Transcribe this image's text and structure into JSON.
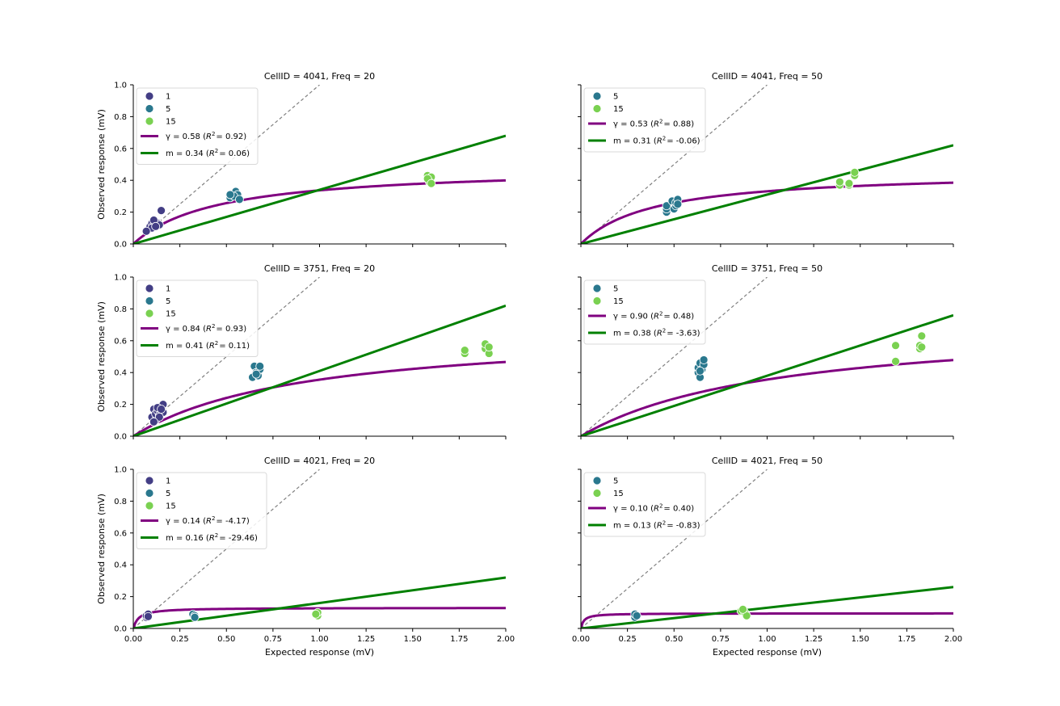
{
  "colors": {
    "group_1": "#433e85",
    "group_5": "#2a788e",
    "group_15": "#7ad151",
    "gamma_line": "#800080",
    "linear_line": "#008000",
    "identity_line": "#808080"
  },
  "chart_data": [
    {
      "type": "scatter",
      "title": "CellID = 4041, Freq = 20",
      "xlabel": "",
      "ylabel": "Observed response (mV)",
      "xlim": [
        0,
        2.0
      ],
      "ylim": [
        0,
        1.0
      ],
      "x_ticks": [
        "0.00",
        "0.25",
        "0.50",
        "0.75",
        "1.00",
        "1.25",
        "1.50",
        "1.75",
        "2.00"
      ],
      "y_ticks": [
        "0.0",
        "0.2",
        "0.4",
        "0.6",
        "0.8",
        "1.0"
      ],
      "show_x_tick_labels": false,
      "show_y_tick_labels": true,
      "legend": {
        "placement": "upper-left",
        "groups": [
          "1",
          "5",
          "15"
        ],
        "gamma_label": "γ = 0.58 (",
        "gamma_r2": "= 0.92)",
        "linear_label": "m = 0.34 (",
        "linear_r2": "= 0.06)"
      },
      "gamma": 0.58,
      "slope": 0.34,
      "ymax": 0.49,
      "series": [
        {
          "name": "1",
          "color_key": "group_1",
          "points": [
            [
              0.08,
              0.09
            ],
            [
              0.09,
              0.11
            ],
            [
              0.1,
              0.13
            ],
            [
              0.11,
              0.12
            ],
            [
              0.12,
              0.14
            ],
            [
              0.13,
              0.13
            ],
            [
              0.1,
              0.1
            ],
            [
              0.14,
              0.12
            ],
            [
              0.15,
              0.21
            ],
            [
              0.11,
              0.15
            ],
            [
              0.07,
              0.08
            ],
            [
              0.12,
              0.11
            ]
          ]
        },
        {
          "name": "5",
          "color_key": "group_5",
          "points": [
            [
              0.52,
              0.29
            ],
            [
              0.55,
              0.33
            ],
            [
              0.56,
              0.31
            ],
            [
              0.54,
              0.3
            ],
            [
              0.57,
              0.28
            ],
            [
              0.52,
              0.31
            ]
          ]
        },
        {
          "name": "15",
          "color_key": "group_15",
          "points": [
            [
              1.58,
              0.43
            ],
            [
              1.6,
              0.42
            ],
            [
              1.59,
              0.39
            ],
            [
              1.58,
              0.41
            ],
            [
              1.6,
              0.38
            ]
          ]
        }
      ]
    },
    {
      "type": "scatter",
      "title": "CellID = 4041, Freq = 50",
      "xlabel": "",
      "ylabel": "",
      "xlim": [
        0,
        2.0
      ],
      "ylim": [
        0,
        1.0
      ],
      "x_ticks": [
        "0.00",
        "0.25",
        "0.50",
        "0.75",
        "1.00",
        "1.25",
        "1.50",
        "1.75",
        "2.00"
      ],
      "y_ticks": [
        "0.0",
        "0.2",
        "0.4",
        "0.6",
        "0.8",
        "1.0"
      ],
      "show_x_tick_labels": false,
      "show_y_tick_labels": false,
      "legend": {
        "placement": "upper-left",
        "groups": [
          "5",
          "15"
        ],
        "gamma_label": "γ = 0.53 (",
        "gamma_r2": "= 0.88)",
        "linear_label": "m = 0.31 (",
        "linear_r2": "= -0.06)"
      },
      "gamma": 0.53,
      "slope": 0.31,
      "ymax": 0.46,
      "series": [
        {
          "name": "5",
          "color_key": "group_5",
          "points": [
            [
              0.46,
              0.2
            ],
            [
              0.46,
              0.22
            ],
            [
              0.46,
              0.24
            ],
            [
              0.49,
              0.27
            ],
            [
              0.5,
              0.22
            ],
            [
              0.51,
              0.24
            ],
            [
              0.51,
              0.26
            ],
            [
              0.52,
              0.28
            ],
            [
              0.52,
              0.25
            ]
          ]
        },
        {
          "name": "15",
          "color_key": "group_15",
          "points": [
            [
              1.39,
              0.37
            ],
            [
              1.39,
              0.39
            ],
            [
              1.44,
              0.37
            ],
            [
              1.44,
              0.38
            ],
            [
              1.47,
              0.43
            ],
            [
              1.47,
              0.45
            ]
          ]
        }
      ]
    },
    {
      "type": "scatter",
      "title": "CellID = 3751, Freq = 20",
      "xlabel": "",
      "ylabel": "Observed response (mV)",
      "xlim": [
        0,
        2.0
      ],
      "ylim": [
        0,
        1.0
      ],
      "x_ticks": [
        "0.00",
        "0.25",
        "0.50",
        "0.75",
        "1.00",
        "1.25",
        "1.50",
        "1.75",
        "2.00"
      ],
      "y_ticks": [
        "0.0",
        "0.2",
        "0.4",
        "0.6",
        "0.8",
        "1.0"
      ],
      "show_x_tick_labels": false,
      "show_y_tick_labels": true,
      "legend": {
        "placement": "upper-left",
        "groups": [
          "1",
          "5",
          "15"
        ],
        "gamma_label": "γ = 0.84 (",
        "gamma_r2": "= 0.93)",
        "linear_label": "m = 0.41 (",
        "linear_r2": "= 0.11)"
      },
      "gamma": 0.84,
      "slope": 0.41,
      "ymax": 0.68,
      "series": [
        {
          "name": "1",
          "color_key": "group_1",
          "points": [
            [
              0.1,
              0.12
            ],
            [
              0.11,
              0.17
            ],
            [
              0.12,
              0.1
            ],
            [
              0.12,
              0.14
            ],
            [
              0.13,
              0.16
            ],
            [
              0.14,
              0.13
            ],
            [
              0.15,
              0.19
            ],
            [
              0.16,
              0.2
            ],
            [
              0.16,
              0.15
            ],
            [
              0.14,
              0.12
            ],
            [
              0.11,
              0.09
            ],
            [
              0.13,
              0.18
            ],
            [
              0.15,
              0.17
            ]
          ]
        },
        {
          "name": "5",
          "color_key": "group_5",
          "points": [
            [
              0.64,
              0.37
            ],
            [
              0.65,
              0.44
            ],
            [
              0.66,
              0.4
            ],
            [
              0.67,
              0.38
            ],
            [
              0.68,
              0.42
            ],
            [
              0.68,
              0.44
            ],
            [
              0.66,
              0.39
            ]
          ]
        },
        {
          "name": "15",
          "color_key": "group_15",
          "points": [
            [
              1.78,
              0.52
            ],
            [
              1.78,
              0.54
            ],
            [
              1.89,
              0.55
            ],
            [
              1.89,
              0.58
            ],
            [
              1.91,
              0.52
            ],
            [
              1.91,
              0.56
            ]
          ]
        }
      ]
    },
    {
      "type": "scatter",
      "title": "CellID = 3751, Freq = 50",
      "xlabel": "",
      "ylabel": "",
      "xlim": [
        0,
        2.0
      ],
      "ylim": [
        0,
        1.0
      ],
      "x_ticks": [
        "0.00",
        "0.25",
        "0.50",
        "0.75",
        "1.00",
        "1.25",
        "1.50",
        "1.75",
        "2.00"
      ],
      "y_ticks": [
        "0.0",
        "0.2",
        "0.4",
        "0.6",
        "0.8",
        "1.0"
      ],
      "show_x_tick_labels": false,
      "show_y_tick_labels": false,
      "legend": {
        "placement": "upper-left",
        "groups": [
          "5",
          "15"
        ],
        "gamma_label": "γ = 0.90 (",
        "gamma_r2": "= 0.48)",
        "linear_label": "m = 0.38 (",
        "linear_r2": "= -3.63)"
      },
      "gamma": 0.9,
      "slope": 0.38,
      "ymax": 0.73,
      "series": [
        {
          "name": "5",
          "color_key": "group_5",
          "points": [
            [
              0.63,
              0.4
            ],
            [
              0.63,
              0.43
            ],
            [
              0.64,
              0.37
            ],
            [
              0.64,
              0.46
            ],
            [
              0.65,
              0.42
            ],
            [
              0.66,
              0.45
            ],
            [
              0.66,
              0.48
            ],
            [
              0.64,
              0.41
            ]
          ]
        },
        {
          "name": "15",
          "color_key": "group_15",
          "points": [
            [
              1.69,
              0.47
            ],
            [
              1.69,
              0.57
            ],
            [
              1.82,
              0.55
            ],
            [
              1.82,
              0.57
            ],
            [
              1.83,
              0.63
            ],
            [
              1.83,
              0.56
            ]
          ]
        }
      ]
    },
    {
      "type": "scatter",
      "title": "CellID = 4021, Freq = 20",
      "xlabel": "Expected response (mV)",
      "ylabel": "Observed response (mV)",
      "xlim": [
        0,
        2.0
      ],
      "ylim": [
        0,
        1.0
      ],
      "x_ticks": [
        "0.00",
        "0.25",
        "0.50",
        "0.75",
        "1.00",
        "1.25",
        "1.50",
        "1.75",
        "2.00"
      ],
      "y_ticks": [
        "0.0",
        "0.2",
        "0.4",
        "0.6",
        "0.8",
        "1.0"
      ],
      "show_x_tick_labels": true,
      "show_y_tick_labels": true,
      "legend": {
        "placement": "upper-left",
        "groups": [
          "1",
          "5",
          "15"
        ],
        "gamma_label": "γ = 0.14 (",
        "gamma_r2": "= -4.17)",
        "linear_label": "m = 0.16 (",
        "linear_r2": "= -29.46)"
      },
      "gamma": 0.14,
      "slope": 0.16,
      "ymax": 0.13,
      "series": [
        {
          "name": "1",
          "color_key": "group_1",
          "points": [
            [
              0.07,
              0.07
            ],
            [
              0.07,
              0.08
            ],
            [
              0.08,
              0.09
            ],
            [
              0.08,
              0.075
            ]
          ]
        },
        {
          "name": "5",
          "color_key": "group_5",
          "points": [
            [
              0.32,
              0.09
            ],
            [
              0.33,
              0.08
            ],
            [
              0.33,
              0.07
            ]
          ]
        },
        {
          "name": "15",
          "color_key": "group_15",
          "points": [
            [
              0.99,
              0.08
            ],
            [
              0.99,
              0.1
            ],
            [
              0.98,
              0.09
            ]
          ]
        }
      ]
    },
    {
      "type": "scatter",
      "title": "CellID = 4021, Freq = 50",
      "xlabel": "Expected response (mV)",
      "ylabel": "",
      "xlim": [
        0,
        2.0
      ],
      "ylim": [
        0,
        1.0
      ],
      "x_ticks": [
        "0.00",
        "0.25",
        "0.50",
        "0.75",
        "1.00",
        "1.25",
        "1.50",
        "1.75",
        "2.00"
      ],
      "y_ticks": [
        "0.0",
        "0.2",
        "0.4",
        "0.6",
        "0.8",
        "1.0"
      ],
      "show_x_tick_labels": true,
      "show_y_tick_labels": false,
      "legend": {
        "placement": "upper-left",
        "groups": [
          "5",
          "15"
        ],
        "gamma_label": "γ = 0.10 (",
        "gamma_r2": "= 0.40)",
        "linear_label": "m = 0.13 (",
        "linear_r2": "= -0.83)"
      },
      "gamma": 0.1,
      "slope": 0.13,
      "ymax": 0.095,
      "series": [
        {
          "name": "5",
          "color_key": "group_5",
          "points": [
            [
              0.29,
              0.07
            ],
            [
              0.29,
              0.09
            ],
            [
              0.3,
              0.08
            ]
          ]
        },
        {
          "name": "15",
          "color_key": "group_15",
          "points": [
            [
              0.86,
              0.11
            ],
            [
              0.88,
              0.1
            ],
            [
              0.89,
              0.08
            ],
            [
              0.87,
              0.12
            ]
          ]
        }
      ]
    }
  ]
}
